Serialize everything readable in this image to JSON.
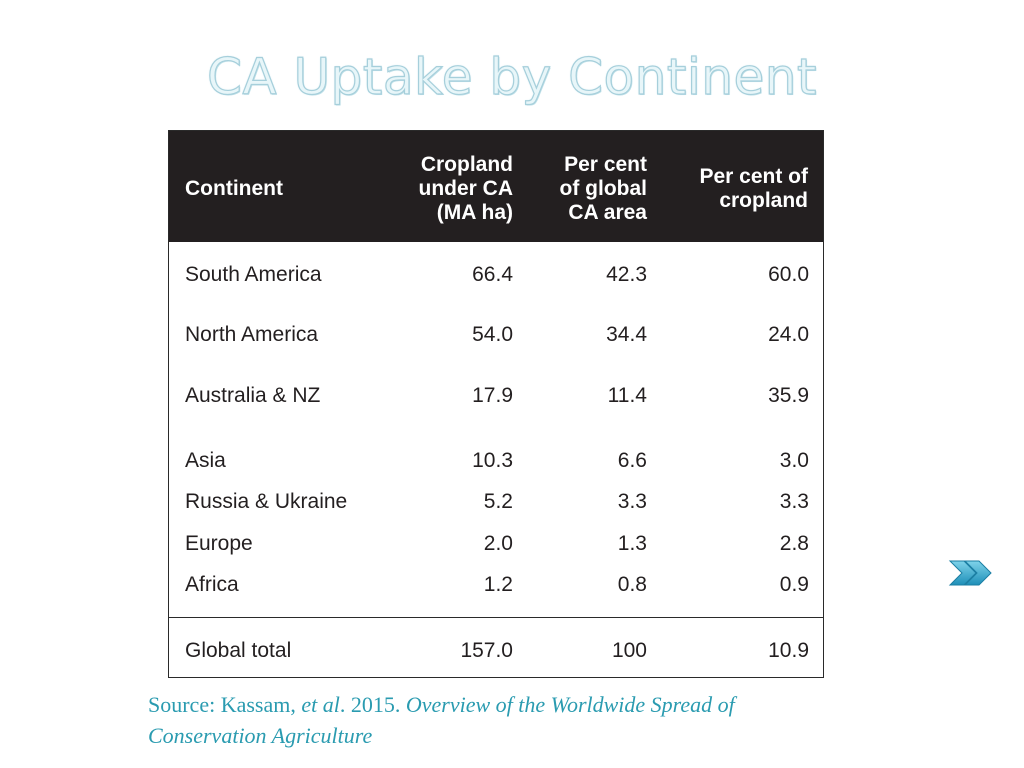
{
  "title": "CA Uptake by Continent",
  "table": {
    "headers": {
      "continent": "Continent",
      "cropland_l1": "Cropland",
      "cropland_l2": "under CA",
      "cropland_l3": "(MA ha)",
      "pglobal_l1": "Per cent",
      "pglobal_l2": "of global",
      "pglobal_l3": "CA area",
      "pcrop_l1": "Per cent of",
      "pcrop_l2": "cropland"
    },
    "rows": [
      {
        "continent": "South America",
        "cropland": "66.4",
        "pct_global": "42.3",
        "pct_cropland": "60.0"
      },
      {
        "continent": "North America",
        "cropland": "54.0",
        "pct_global": "34.4",
        "pct_cropland": "24.0"
      },
      {
        "continent": "Australia & NZ",
        "cropland": "17.9",
        "pct_global": "11.4",
        "pct_cropland": "35.9"
      },
      {
        "continent": "Asia",
        "cropland": "10.3",
        "pct_global": "6.6",
        "pct_cropland": "3.0"
      },
      {
        "continent": "Russia & Ukraine",
        "cropland": "5.2",
        "pct_global": "3.3",
        "pct_cropland": "3.3"
      },
      {
        "continent": "Europe",
        "cropland": "2.0",
        "pct_global": "1.3",
        "pct_cropland": "2.8"
      },
      {
        "continent": "Africa",
        "cropland": "1.2",
        "pct_global": "0.8",
        "pct_cropland": "0.9"
      }
    ],
    "total": {
      "continent": "Global total",
      "cropland": "157.0",
      "pct_global": "100",
      "pct_cropland": "10.9"
    }
  },
  "source": {
    "prefix": "Source: Kassam, ",
    "etal": "et al",
    "middle": ".  2015. ",
    "title_line1": "Overview of the Worldwide Spread of",
    "title_line2": "Conservation Agriculture"
  },
  "icons": {
    "next": "double-chevron-right-icon"
  },
  "colors": {
    "accent": "#2a9bb0",
    "header_bg": "#231f20"
  }
}
